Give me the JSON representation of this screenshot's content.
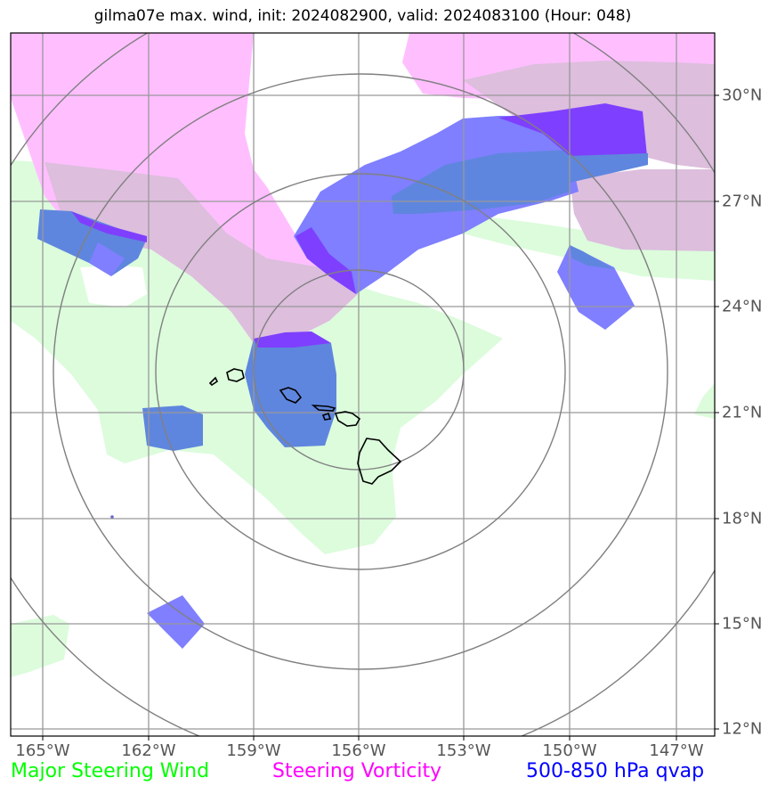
{
  "title": "gilma07e max. wind, init: 2024082900, valid: 2024083100 (Hour: 048)",
  "lon_ticks": [
    "165°W",
    "162°W",
    "159°W",
    "156°W",
    "153°W",
    "150°W",
    "147°W"
  ],
  "lat_ticks": [
    "30°N",
    "27°N",
    "24°N",
    "21°N",
    "18°N",
    "15°N",
    "12°N"
  ],
  "legend": {
    "wind": "Major Steering Wind",
    "vorticity": "Steering Vorticity",
    "qvap": "500-850 hPa qvap"
  },
  "colors": {
    "wind": "#00ff00",
    "vorticity": "#ff00ff",
    "qvap": "#0000ff",
    "wind_fill": "#dcfcdc",
    "vorticity_fill": "#ffbfff",
    "overlap_fill": "#ddbedd",
    "qvap_fill": "#7f7fff",
    "qvap_dark_fill": "#7f3fff",
    "qvap_on_green_fill": "#5f86de",
    "grid": "#999999",
    "range_ring": "#808080"
  }
}
